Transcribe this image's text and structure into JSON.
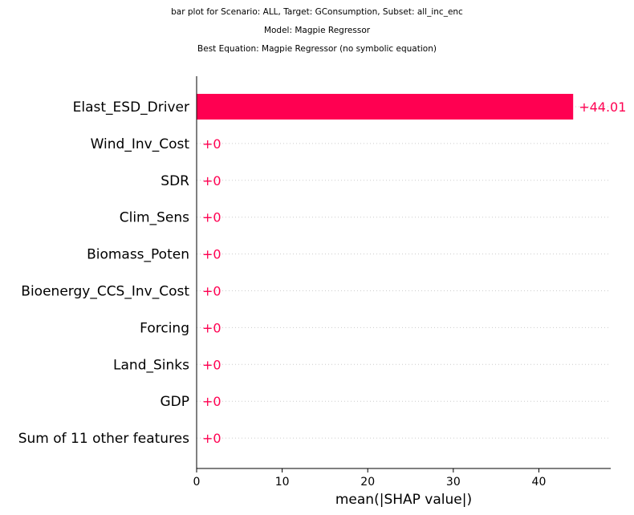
{
  "titles": {
    "line1": "bar plot for Scenario: ALL, Target: GConsumption, Subset: all_inc_enc",
    "line2": "Model: Magpie Regressor",
    "line3": "Best Equation: Magpie Regressor (no symbolic equation)"
  },
  "chart_data": {
    "type": "bar",
    "orientation": "horizontal",
    "title": "bar plot for Scenario: ALL, Target: GConsumption, Subset: all_inc_enc",
    "xlabel": "mean(|SHAP value|)",
    "ylabel": "",
    "xlim": [
      0,
      48.4
    ],
    "xticks": [
      0,
      10,
      20,
      30,
      40
    ],
    "grid": false,
    "categories": [
      "Elast_ESD_Driver",
      "Wind_Inv_Cost",
      "SDR",
      "Clim_Sens",
      "Biomass_Poten",
      "Bioenergy_CCS_Inv_Cost",
      "Forcing",
      "Land_Sinks",
      "GDP",
      "Sum of 11 other features"
    ],
    "values": [
      44.01,
      0,
      0,
      0,
      0,
      0,
      0,
      0,
      0,
      0
    ],
    "value_labels": [
      "+44.01",
      "+0",
      "+0",
      "+0",
      "+0",
      "+0",
      "+0",
      "+0",
      "+0",
      "+0"
    ],
    "bar_color": "#ff0051"
  }
}
